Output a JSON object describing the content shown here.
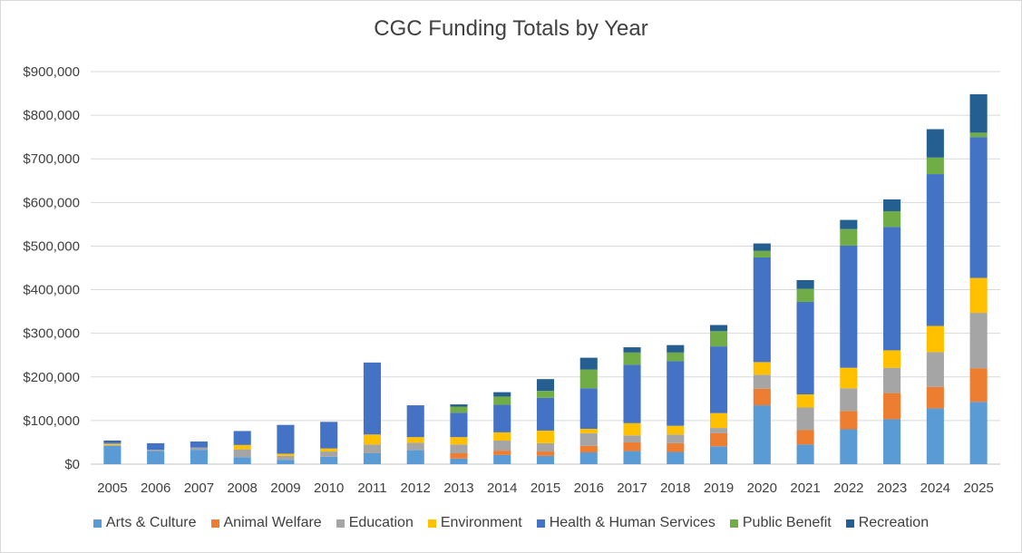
{
  "chart_data": {
    "type": "bar",
    "stacked": true,
    "title": "CGC Funding Totals by Year",
    "xlabel": "",
    "ylabel": "",
    "ylim": [
      0,
      900000
    ],
    "yticks": [
      0,
      100000,
      200000,
      300000,
      400000,
      500000,
      600000,
      700000,
      800000,
      900000
    ],
    "ytick_labels": [
      "$0",
      "$100,000",
      "$200,000",
      "$300,000",
      "$400,000",
      "$500,000",
      "$600,000",
      "$700,000",
      "$800,000",
      "$900,000"
    ],
    "grid": true,
    "legend_position": "bottom",
    "categories": [
      "2005",
      "2006",
      "2007",
      "2008",
      "2009",
      "2010",
      "2011",
      "2012",
      "2013",
      "2014",
      "2015",
      "2016",
      "2017",
      "2018",
      "2019",
      "2020",
      "2021",
      "2022",
      "2023",
      "2024",
      "2025"
    ],
    "series": [
      {
        "name": "Arts & Culture",
        "color": "#5b9bd5",
        "values": [
          42000,
          30000,
          33000,
          16000,
          10000,
          17000,
          25000,
          32000,
          13000,
          21000,
          19000,
          27000,
          30000,
          28000,
          41000,
          135000,
          45000,
          80000,
          103000,
          128000,
          143000
        ]
      },
      {
        "name": "Animal Welfare",
        "color": "#ed7d31",
        "values": [
          0,
          0,
          0,
          0,
          0,
          0,
          0,
          0,
          12000,
          10000,
          10000,
          15000,
          20000,
          20000,
          30000,
          38000,
          33000,
          42000,
          60000,
          49000,
          77000
        ]
      },
      {
        "name": "Education",
        "color": "#a5a5a5",
        "values": [
          2000,
          3000,
          5000,
          18000,
          9000,
          12000,
          20000,
          17000,
          20000,
          23000,
          19000,
          29000,
          16000,
          20000,
          12000,
          32000,
          52000,
          52000,
          58000,
          80000,
          127000
        ]
      },
      {
        "name": "Environment",
        "color": "#ffc000",
        "values": [
          3000,
          0,
          0,
          10000,
          5000,
          7000,
          23000,
          13000,
          17000,
          19000,
          29000,
          10000,
          28000,
          20000,
          34000,
          29000,
          30000,
          47000,
          40000,
          60000,
          80000
        ]
      },
      {
        "name": "Health & Human Services",
        "color": "#4472c4",
        "values": [
          5000,
          15000,
          14000,
          32000,
          66000,
          61000,
          165000,
          73000,
          56000,
          63000,
          75000,
          93000,
          134000,
          148000,
          153000,
          240000,
          212000,
          280000,
          283000,
          348000,
          323000
        ]
      },
      {
        "name": "Public Benefit",
        "color": "#70ad47",
        "values": [
          0,
          0,
          0,
          0,
          0,
          0,
          0,
          0,
          14000,
          19000,
          16000,
          43000,
          28000,
          20000,
          35000,
          15000,
          30000,
          38000,
          36000,
          38000,
          10000
        ]
      },
      {
        "name": "Recreation",
        "color": "#255e91",
        "values": [
          2000,
          0,
          0,
          0,
          0,
          0,
          0,
          0,
          5000,
          10000,
          27000,
          27000,
          12000,
          17000,
          14000,
          17000,
          20000,
          21000,
          27000,
          65000,
          88000
        ]
      }
    ]
  }
}
